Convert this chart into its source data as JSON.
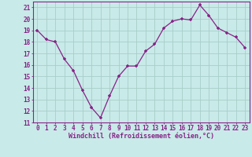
{
  "x": [
    0,
    1,
    2,
    3,
    4,
    5,
    6,
    7,
    8,
    9,
    10,
    11,
    12,
    13,
    14,
    15,
    16,
    17,
    18,
    19,
    20,
    21,
    22,
    23
  ],
  "y": [
    19.0,
    18.2,
    18.0,
    16.5,
    15.5,
    13.8,
    12.3,
    11.4,
    13.3,
    15.0,
    15.9,
    15.9,
    17.2,
    17.8,
    19.2,
    19.8,
    20.0,
    19.9,
    21.2,
    20.3,
    19.2,
    18.8,
    18.4,
    17.5
  ],
  "line_color": "#882288",
  "bg_color": "#C8EAE8",
  "grid_color": "#A8CECA",
  "axis_color": "#882288",
  "xlabel": "Windchill (Refroidissement éolien,°C)",
  "xlim": [
    -0.5,
    23.5
  ],
  "ylim": [
    11,
    21.5
  ],
  "yticks": [
    11,
    12,
    13,
    14,
    15,
    16,
    17,
    18,
    19,
    20,
    21
  ],
  "xticks": [
    0,
    1,
    2,
    3,
    4,
    5,
    6,
    7,
    8,
    9,
    10,
    11,
    12,
    13,
    14,
    15,
    16,
    17,
    18,
    19,
    20,
    21,
    22,
    23
  ],
  "tick_fontsize": 5.5,
  "label_fontsize": 6.0
}
